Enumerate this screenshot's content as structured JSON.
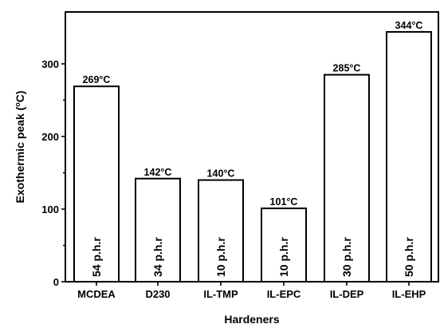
{
  "chart_data": {
    "type": "bar",
    "xlabel": "Hardeners",
    "ylabel_prefix": "Exothermic peak (",
    "ylabel_sup": "o",
    "ylabel_suffix": "C)",
    "ylim": [
      0,
      350
    ],
    "yticks": [
      0,
      100,
      200,
      300
    ],
    "ytick_labels": [
      "0",
      "100",
      "200",
      "300"
    ],
    "grid": false,
    "categories": [
      "MCDEA",
      "D230",
      "IL-TMP",
      "IL-EPC",
      "IL-DEP",
      "IL-EHP"
    ],
    "values": [
      269,
      142,
      140,
      101,
      285,
      344
    ],
    "data_labels": [
      "269°C",
      "142°C",
      "140°C",
      "101°C",
      "285°C",
      "344°C"
    ],
    "inner_labels": [
      "54 p.h.r",
      "34 p.h.r",
      "10 p.h.r",
      "10 p.h.r",
      "30 p.h.r",
      "50 p.h.r"
    ],
    "colors": {
      "bar_fill": "#ffffff",
      "bar_stroke": "#000000",
      "text": "#000000"
    }
  }
}
